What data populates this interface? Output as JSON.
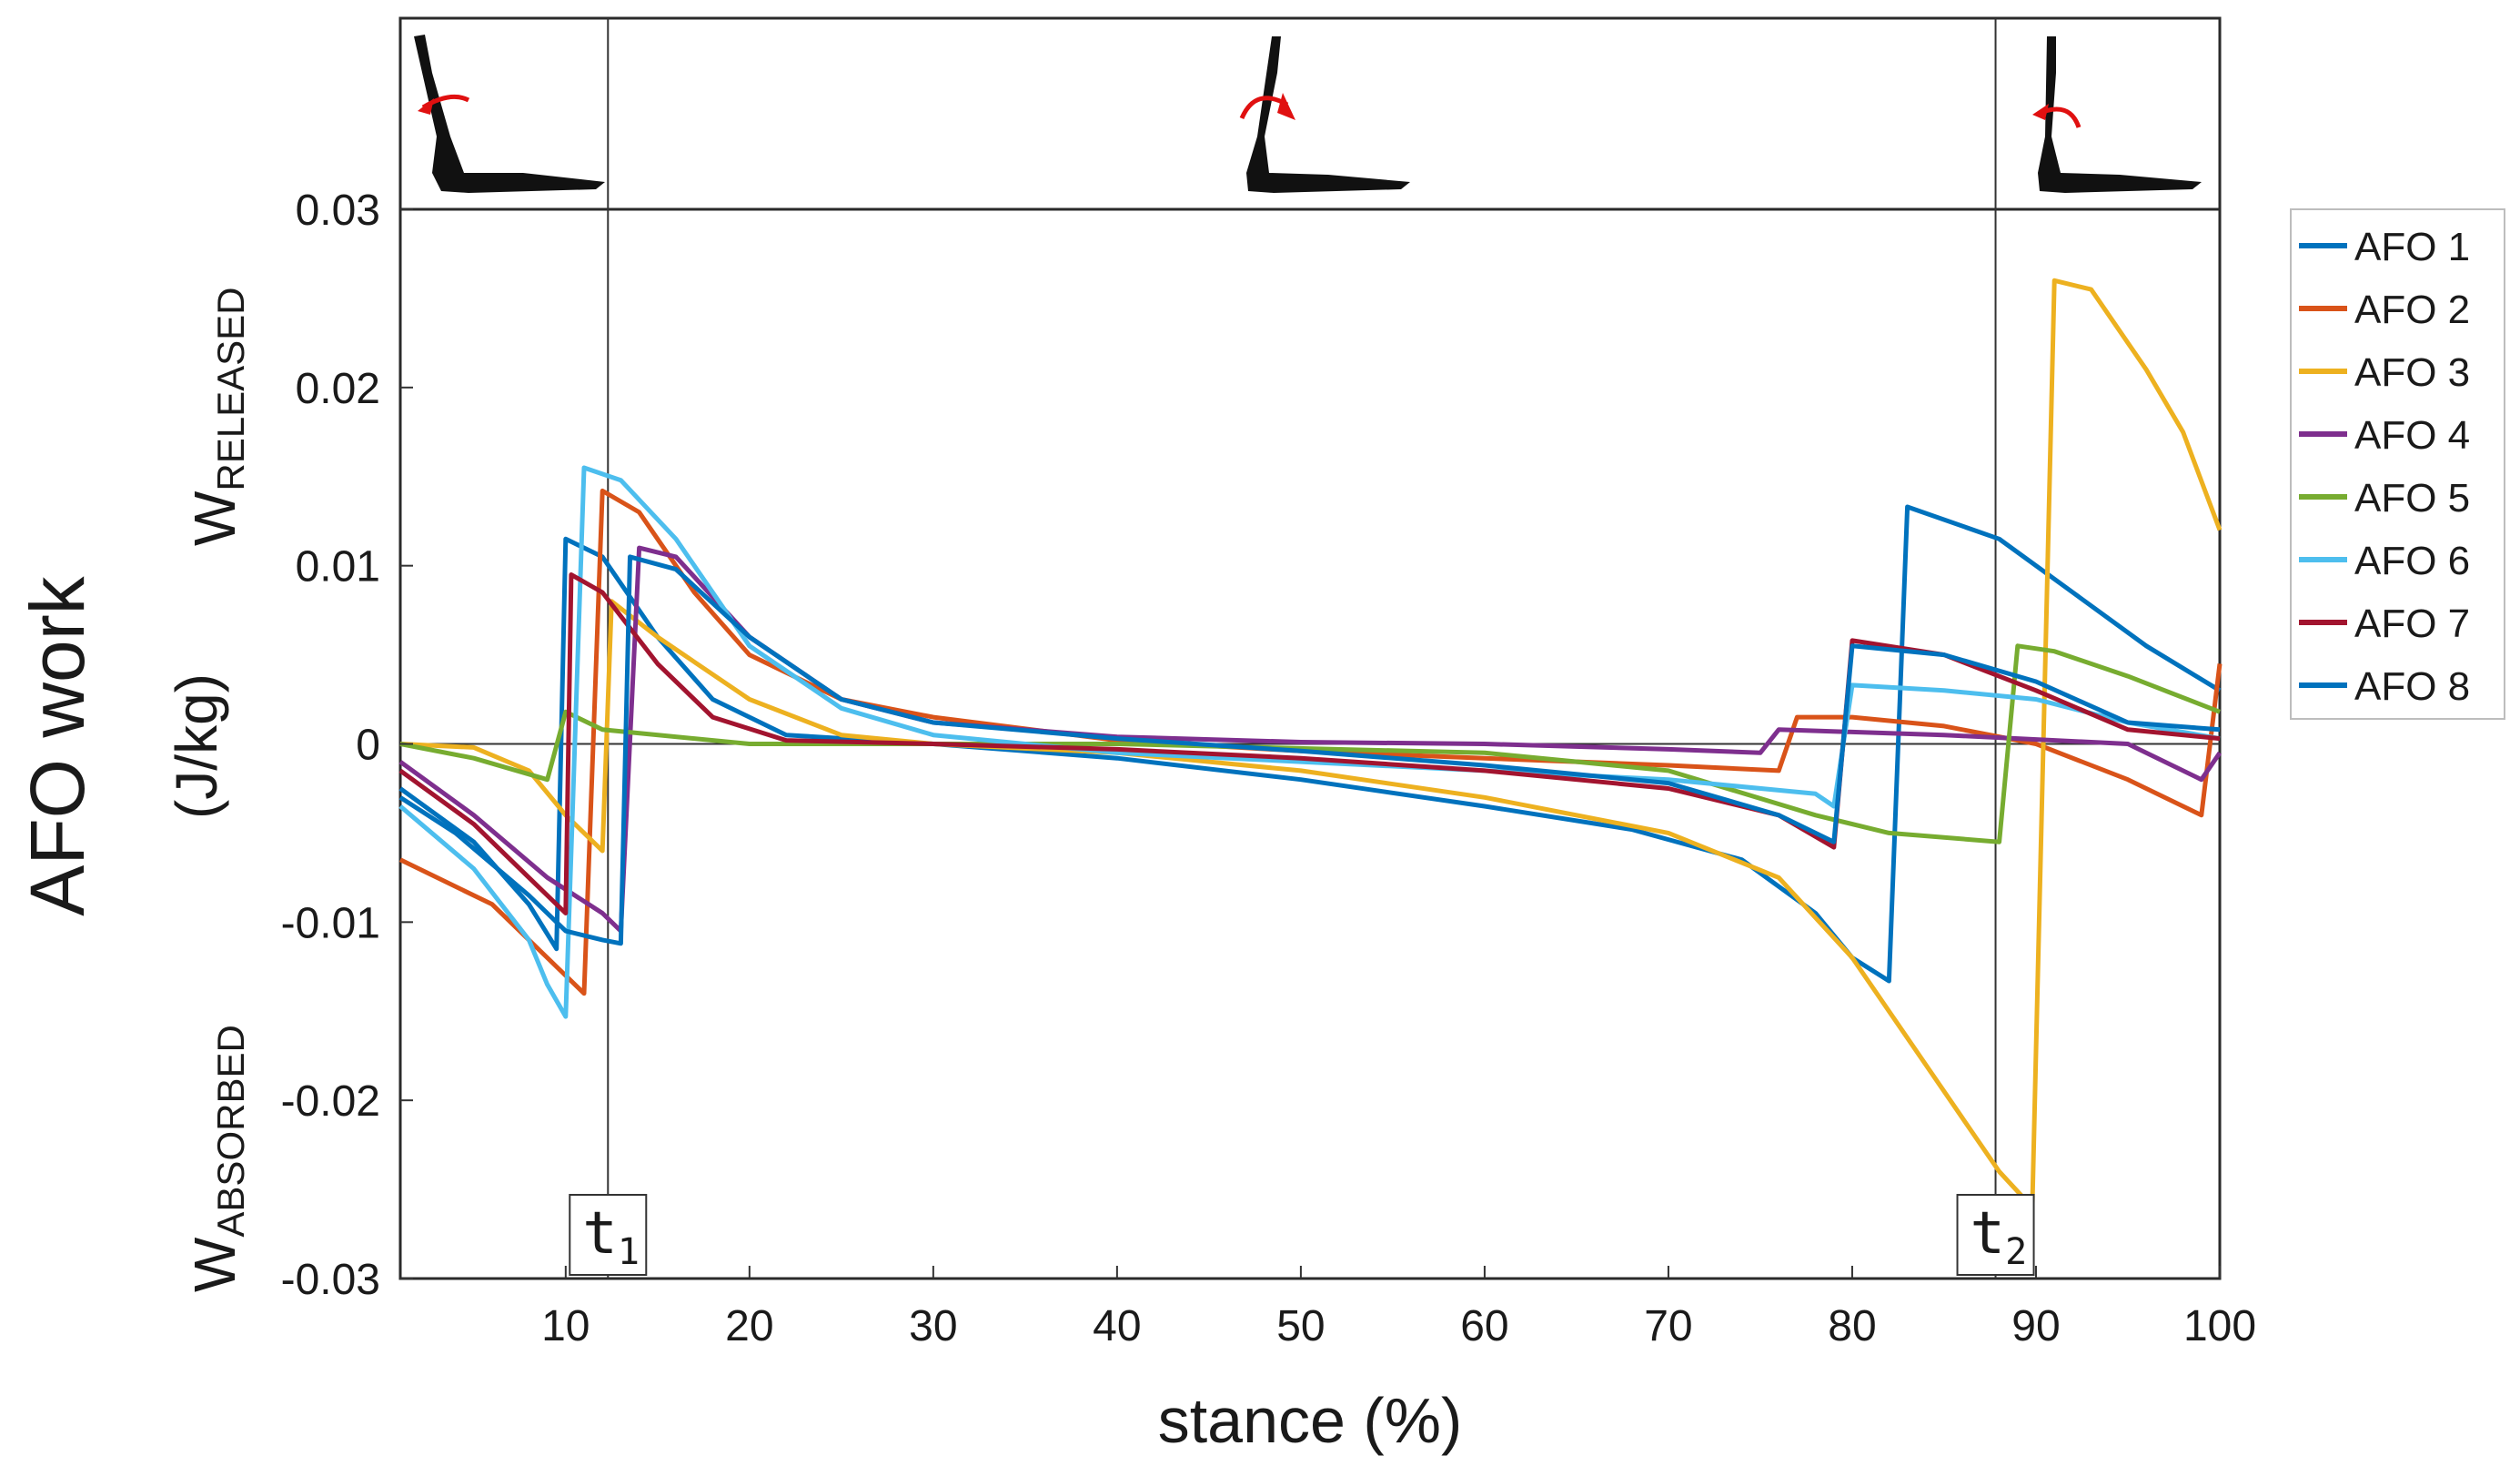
{
  "chart_data": {
    "type": "line",
    "title": "",
    "xlabel": "stance (%)",
    "ylabel": "AFO work",
    "yunit": "(J/kg)",
    "y_upper_label": {
      "main": "W",
      "sub": "RELEASED"
    },
    "y_lower_label": {
      "main": "W",
      "sub": "ABSORBED"
    },
    "xlim": [
      1,
      100
    ],
    "ylim": [
      -0.03,
      0.03
    ],
    "x_ticks": [
      10,
      20,
      30,
      40,
      50,
      60,
      70,
      80,
      90,
      100
    ],
    "x_tick_labels": [
      "10",
      "20",
      "30",
      "40",
      "50",
      "60",
      "70",
      "80",
      "90",
      "100"
    ],
    "y_ticks": [
      0.03,
      0.02,
      0.01,
      0,
      -0.01,
      -0.02,
      -0.03
    ],
    "y_tick_labels": [
      "0.03",
      "0.02",
      "0.01",
      "0",
      "-0.01",
      "-0.02",
      "-0.03"
    ],
    "markers": [
      {
        "x": 12.3,
        "label": "t",
        "sub": "1"
      },
      {
        "x": 87.8,
        "label": "t",
        "sub": "2"
      }
    ],
    "legend_position": "right",
    "series": [
      {
        "name": "AFO 1",
        "color": "#0072BD",
        "points": [
          [
            1,
            -0.0025
          ],
          [
            5,
            -0.0055
          ],
          [
            8,
            -0.009
          ],
          [
            9.5,
            -0.0115
          ],
          [
            10,
            0.0115
          ],
          [
            12,
            0.0105
          ],
          [
            15,
            0.006
          ],
          [
            18,
            0.0025
          ],
          [
            22,
            0.0005
          ],
          [
            30,
            0.0
          ],
          [
            40,
            -0.0008
          ],
          [
            50,
            -0.002
          ],
          [
            60,
            -0.0035
          ],
          [
            68,
            -0.0048
          ],
          [
            74,
            -0.0065
          ],
          [
            78,
            -0.0095
          ],
          [
            80,
            -0.012
          ],
          [
            82,
            -0.0133
          ],
          [
            83,
            0.0133
          ],
          [
            88,
            0.0115
          ],
          [
            92,
            0.0085
          ],
          [
            96,
            0.0055
          ],
          [
            100,
            0.003
          ]
        ]
      },
      {
        "name": "AFO 2",
        "color": "#D95319",
        "points": [
          [
            1,
            -0.0065
          ],
          [
            6,
            -0.009
          ],
          [
            9,
            -0.012
          ],
          [
            11,
            -0.014
          ],
          [
            12,
            0.0142
          ],
          [
            14,
            0.013
          ],
          [
            17,
            0.0085
          ],
          [
            20,
            0.005
          ],
          [
            25,
            0.0025
          ],
          [
            30,
            0.0015
          ],
          [
            40,
            0.0002
          ],
          [
            50,
            -0.0004
          ],
          [
            60,
            -0.0008
          ],
          [
            70,
            -0.0012
          ],
          [
            76,
            -0.0015
          ],
          [
            77,
            0.0015
          ],
          [
            80,
            0.0015
          ],
          [
            85,
            0.001
          ],
          [
            90,
            0.0
          ],
          [
            95,
            -0.002
          ],
          [
            99,
            -0.004
          ],
          [
            100,
            0.0045
          ]
        ]
      },
      {
        "name": "AFO 3",
        "color": "#EDB120",
        "points": [
          [
            1,
            0.0
          ],
          [
            5,
            -0.0002
          ],
          [
            8,
            -0.0015
          ],
          [
            10,
            -0.004
          ],
          [
            12,
            -0.006
          ],
          [
            12.5,
            0.008
          ],
          [
            15,
            0.006
          ],
          [
            20,
            0.0025
          ],
          [
            25,
            0.0005
          ],
          [
            30,
            0.0
          ],
          [
            40,
            -0.0005
          ],
          [
            50,
            -0.0015
          ],
          [
            60,
            -0.003
          ],
          [
            70,
            -0.005
          ],
          [
            76,
            -0.0075
          ],
          [
            80,
            -0.012
          ],
          [
            84,
            -0.018
          ],
          [
            88,
            -0.024
          ],
          [
            89.8,
            -0.026
          ],
          [
            91,
            0.026
          ],
          [
            93,
            0.0255
          ],
          [
            96,
            0.021
          ],
          [
            98,
            0.0175
          ],
          [
            100,
            0.012
          ]
        ]
      },
      {
        "name": "AFO 4",
        "color": "#7E2F8E",
        "points": [
          [
            1,
            -0.001
          ],
          [
            5,
            -0.004
          ],
          [
            9,
            -0.0075
          ],
          [
            12,
            -0.0095
          ],
          [
            13,
            -0.0105
          ],
          [
            14,
            0.011
          ],
          [
            16,
            0.0105
          ],
          [
            20,
            0.006
          ],
          [
            25,
            0.0025
          ],
          [
            30,
            0.0012
          ],
          [
            40,
            0.0004
          ],
          [
            50,
            0.0001
          ],
          [
            60,
            0.0
          ],
          [
            70,
            -0.0003
          ],
          [
            75,
            -0.0005
          ],
          [
            76,
            0.0008
          ],
          [
            85,
            0.0005
          ],
          [
            95,
            0.0
          ],
          [
            99,
            -0.002
          ],
          [
            100,
            -0.0005
          ]
        ]
      },
      {
        "name": "AFO 5",
        "color": "#77AC30",
        "points": [
          [
            1,
            0.0
          ],
          [
            5,
            -0.0008
          ],
          [
            9,
            -0.002
          ],
          [
            10,
            0.0018
          ],
          [
            12,
            0.0008
          ],
          [
            20,
            0.0
          ],
          [
            40,
            0.0
          ],
          [
            60,
            -0.0005
          ],
          [
            70,
            -0.0015
          ],
          [
            78,
            -0.004
          ],
          [
            82,
            -0.005
          ],
          [
            88,
            -0.0055
          ],
          [
            89,
            0.0055
          ],
          [
            91,
            0.0052
          ],
          [
            95,
            0.0038
          ],
          [
            100,
            0.0018
          ]
        ]
      },
      {
        "name": "AFO 6",
        "color": "#4DBEEE",
        "points": [
          [
            1,
            -0.0035
          ],
          [
            5,
            -0.007
          ],
          [
            8,
            -0.011
          ],
          [
            9,
            -0.0135
          ],
          [
            10,
            -0.0153
          ],
          [
            11,
            0.0155
          ],
          [
            13,
            0.0148
          ],
          [
            16,
            0.0115
          ],
          [
            20,
            0.0055
          ],
          [
            25,
            0.002
          ],
          [
            30,
            0.0005
          ],
          [
            40,
            -0.0005
          ],
          [
            50,
            -0.001
          ],
          [
            60,
            -0.0015
          ],
          [
            70,
            -0.002
          ],
          [
            78,
            -0.0028
          ],
          [
            79,
            -0.0035
          ],
          [
            80,
            0.0033
          ],
          [
            85,
            0.003
          ],
          [
            90,
            0.0025
          ],
          [
            95,
            0.0012
          ],
          [
            100,
            0.0003
          ]
        ]
      },
      {
        "name": "AFO 7",
        "color": "#A2142F",
        "points": [
          [
            1,
            -0.0015
          ],
          [
            5,
            -0.0045
          ],
          [
            8,
            -0.0075
          ],
          [
            10,
            -0.0095
          ],
          [
            10.3,
            0.0095
          ],
          [
            12,
            0.0085
          ],
          [
            15,
            0.0045
          ],
          [
            18,
            0.0015
          ],
          [
            22,
            0.0002
          ],
          [
            30,
            0.0
          ],
          [
            40,
            -0.0003
          ],
          [
            50,
            -0.0008
          ],
          [
            60,
            -0.0015
          ],
          [
            70,
            -0.0025
          ],
          [
            76,
            -0.004
          ],
          [
            79,
            -0.0058
          ],
          [
            80,
            0.0058
          ],
          [
            85,
            0.005
          ],
          [
            90,
            0.003
          ],
          [
            95,
            0.0008
          ],
          [
            100,
            0.0003
          ]
        ]
      },
      {
        "name": "AFO 8",
        "color": "#0072BD",
        "points": [
          [
            1,
            -0.003
          ],
          [
            4,
            -0.005
          ],
          [
            8,
            -0.0085
          ],
          [
            10,
            -0.0105
          ],
          [
            12,
            -0.011
          ],
          [
            13,
            -0.0112
          ],
          [
            13.5,
            0.0105
          ],
          [
            16,
            0.0098
          ],
          [
            20,
            0.006
          ],
          [
            25,
            0.0025
          ],
          [
            30,
            0.0012
          ],
          [
            40,
            0.0003
          ],
          [
            50,
            -0.0004
          ],
          [
            60,
            -0.0012
          ],
          [
            70,
            -0.0022
          ],
          [
            76,
            -0.004
          ],
          [
            79,
            -0.0055
          ],
          [
            80,
            0.0055
          ],
          [
            85,
            0.005
          ],
          [
            90,
            0.0035
          ],
          [
            95,
            0.0012
          ],
          [
            100,
            0.0008
          ]
        ]
      }
    ]
  }
}
